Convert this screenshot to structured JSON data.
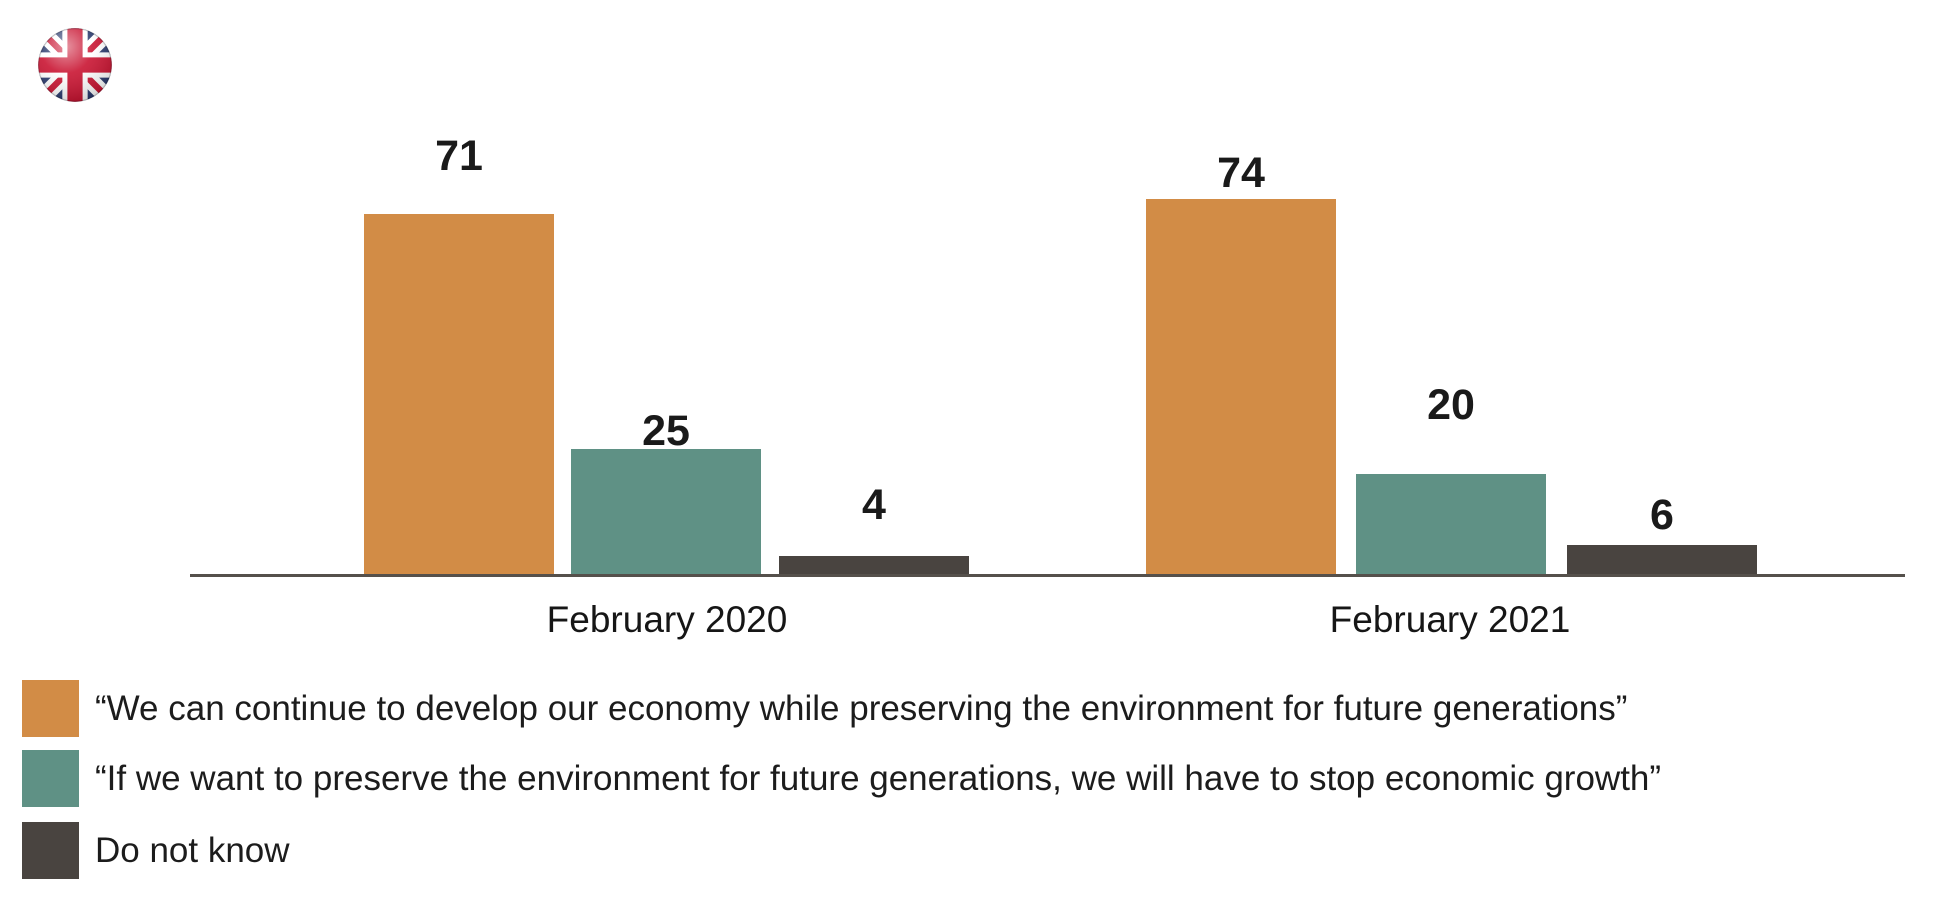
{
  "page": {
    "background": "#ffffff",
    "text_color": "#1a1a1a"
  },
  "flag": {
    "name": "United Kingdom",
    "colors": {
      "blue": "#27376b",
      "red": "#c8102e",
      "white": "#ffffff"
    }
  },
  "chart_data": {
    "type": "bar",
    "categories": [
      "February 2020",
      "February 2021"
    ],
    "series": [
      {
        "name": "“We can continue to develop our economy while preserving the environment for future generations”",
        "color": "#d28c46",
        "values": [
          71,
          74
        ]
      },
      {
        "name": "“If we want to preserve the environment for future generations, we will have to stop economic growth”",
        "color": "#5f9185",
        "values": [
          25,
          20
        ]
      },
      {
        "name": "Do not know",
        "color": "#494440",
        "values": [
          4,
          6
        ]
      }
    ],
    "value_labels_shown": true,
    "ylim": [
      0,
      78
    ],
    "grid": false,
    "y_axis_shown": false,
    "axis_color": "#55504b",
    "legend_position": "bottom-left"
  }
}
